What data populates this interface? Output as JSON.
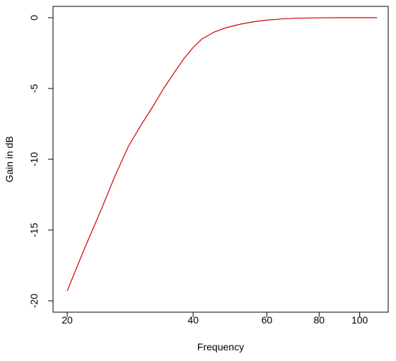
{
  "chart_data": {
    "type": "line",
    "x_label": "Frequency",
    "y_label": "Gain in dB",
    "x": [
      20,
      22,
      24,
      26,
      28,
      30,
      32,
      34,
      36,
      38,
      40,
      42,
      45,
      48,
      52,
      56,
      60,
      65,
      70,
      80,
      90,
      100,
      110
    ],
    "series": [
      {
        "color": "#d00000",
        "values": [
          -19.3,
          -16.3,
          -13.7,
          -11.2,
          -9.1,
          -7.6,
          -6.3,
          -5.0,
          -3.9,
          -2.9,
          -2.1,
          -1.5,
          -1.0,
          -0.7,
          -0.45,
          -0.28,
          -0.17,
          -0.09,
          -0.04,
          -0.01,
          0,
          0,
          0
        ]
      }
    ],
    "x_log": true,
    "xlim": [
      18.5,
      117
    ],
    "xticks": [
      20,
      40,
      60,
      80,
      100
    ],
    "ylim": [
      -20.8,
      0.8
    ],
    "yticks": [
      0,
      -5,
      -10,
      -15,
      -20
    ]
  }
}
